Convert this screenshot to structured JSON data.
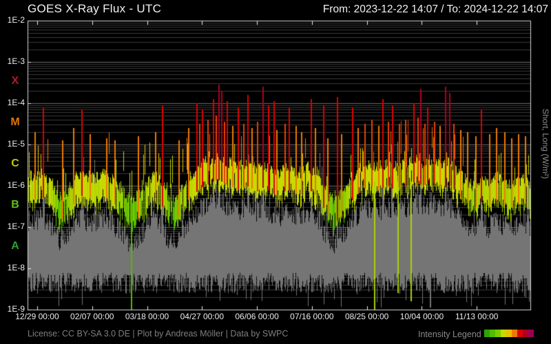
{
  "header": {
    "title": "GOES X-Ray Flux - UTC",
    "date_range": "From: 2023-12-22 14:07  /  To: 2024-12-22 14:07"
  },
  "right_axis_label": "Short, Long (W/m²)",
  "y_axis": {
    "ticks": [
      {
        "label": "1E-2",
        "log": -2
      },
      {
        "label": "1E-3",
        "log": -3
      },
      {
        "label": "1E-4",
        "log": -4
      },
      {
        "label": "1E-5",
        "log": -5
      },
      {
        "label": "1E-6",
        "log": -6
      },
      {
        "label": "1E-7",
        "log": -7
      },
      {
        "label": "1E-8",
        "log": -8
      },
      {
        "label": "1E-9",
        "log": -9
      }
    ],
    "class_labels": [
      {
        "label": "X",
        "log": -3.5,
        "color": "#b5182f"
      },
      {
        "label": "M",
        "log": -4.5,
        "color": "#e07800"
      },
      {
        "label": "C",
        "log": -5.5,
        "color": "#bcc800"
      },
      {
        "label": "B",
        "log": -6.5,
        "color": "#5fbf1f"
      },
      {
        "label": "A",
        "log": -7.5,
        "color": "#2ea02e"
      }
    ]
  },
  "x_axis": {
    "range_days": 366,
    "ticks": [
      {
        "label": "12/29 00:00",
        "day": 7
      },
      {
        "label": "02/07 00:00",
        "day": 47
      },
      {
        "label": "03/18 00:00",
        "day": 87
      },
      {
        "label": "04/27 00:00",
        "day": 127
      },
      {
        "label": "06/06 00:00",
        "day": 167
      },
      {
        "label": "07/16 00:00",
        "day": 207
      },
      {
        "label": "08/25 00:00",
        "day": 247
      },
      {
        "label": "10/04 00:00",
        "day": 287
      },
      {
        "label": "11/13 00:00",
        "day": 327
      }
    ]
  },
  "footer": {
    "license": "License: CC BY-SA 3.0 DE | Plot by Andreas Möller | Data by SWPC",
    "legend_label": "Intensity Legend",
    "legend_colors": [
      "#2aa800",
      "#54bb00",
      "#7cc900",
      "#c6da00",
      "#e9c000",
      "#ee7a00",
      "#dd0000",
      "#b00022",
      "#990055"
    ]
  },
  "chart_data": {
    "type": "line",
    "title": "GOES X-Ray Flux - UTC",
    "x_start": "2023-12-22 14:07",
    "x_end": "2024-12-22 14:07",
    "x_range_days": 366,
    "ylabel": "Short, Long (W/m²)",
    "y_log10_range": [
      -9,
      -2
    ],
    "grid": "log major + minor",
    "sample_step_days": 3,
    "series": [
      {
        "name": "long-channel x-ray flux (colored by intensity class)",
        "top_envelope_log10": [
          -5.85,
          -5.75,
          -5.8,
          -5.7,
          -5.75,
          -5.85,
          -5.95,
          -6.1,
          -6.3,
          -6.25,
          -6.1,
          -5.9,
          -5.75,
          -5.7,
          -5.8,
          -5.75,
          -5.85,
          -5.8,
          -5.7,
          -5.75,
          -5.8,
          -5.9,
          -6.0,
          -6.1,
          -6.25,
          -6.35,
          -6.3,
          -6.2,
          -6.05,
          -5.9,
          -5.8,
          -5.75,
          -5.85,
          -6.0,
          -6.25,
          -6.4,
          -6.35,
          -6.15,
          -5.95,
          -5.8,
          -5.7,
          -5.6,
          -5.5,
          -5.45,
          -5.4,
          -5.35,
          -5.3,
          -5.35,
          -5.4,
          -5.45,
          -5.5,
          -5.55,
          -5.5,
          -5.45,
          -5.5,
          -5.55,
          -5.6,
          -5.5,
          -5.55,
          -5.6,
          -5.65,
          -5.7,
          -5.6,
          -5.55,
          -5.6,
          -5.65,
          -5.7,
          -5.6,
          -5.55,
          -5.6,
          -5.7,
          -5.85,
          -6.05,
          -6.25,
          -6.35,
          -6.3,
          -6.2,
          -6.05,
          -5.9,
          -5.75,
          -5.65,
          -5.55,
          -5.5,
          -5.45,
          -5.5,
          -5.55,
          -5.5,
          -5.45,
          -5.5,
          -5.55,
          -5.5,
          -5.5,
          -5.45,
          -5.4,
          -5.35,
          -5.4,
          -5.45,
          -5.4,
          -5.35,
          -5.4,
          -5.45,
          -5.5,
          -5.45,
          -5.5,
          -5.6,
          -5.7,
          -5.8,
          -5.9,
          -6.0,
          -5.95,
          -5.85,
          -5.9,
          -5.95,
          -5.85,
          -5.8,
          -5.85,
          -5.95,
          -6.0,
          -5.95,
          -5.9,
          -5.85,
          -5.9,
          -5.95
        ],
        "band_depth_log10": 0.45
      },
      {
        "name": "short-channel x-ray flux (gray)",
        "top_envelope_log10": [
          -6.9,
          -6.8,
          -6.85,
          -6.75,
          -6.8,
          -6.9,
          -7.0,
          -7.15,
          -7.35,
          -7.3,
          -7.15,
          -6.95,
          -6.8,
          -6.75,
          -6.85,
          -6.8,
          -6.9,
          -6.85,
          -6.75,
          -6.8,
          -6.85,
          -6.95,
          -7.05,
          -7.15,
          -7.3,
          -7.4,
          -7.35,
          -7.25,
          -7.1,
          -6.95,
          -6.85,
          -6.8,
          -6.9,
          -7.05,
          -7.3,
          -7.45,
          -7.4,
          -7.2,
          -7.0,
          -6.85,
          -6.75,
          -6.65,
          -6.55,
          -6.5,
          -6.45,
          -6.4,
          -6.35,
          -6.4,
          -6.45,
          -6.5,
          -6.55,
          -6.6,
          -6.55,
          -6.5,
          -6.55,
          -6.6,
          -6.65,
          -6.55,
          -6.6,
          -6.65,
          -6.7,
          -6.75,
          -6.65,
          -6.6,
          -6.65,
          -6.7,
          -6.75,
          -6.65,
          -6.6,
          -6.65,
          -6.75,
          -6.9,
          -7.1,
          -7.3,
          -7.4,
          -7.35,
          -7.25,
          -7.1,
          -6.95,
          -6.8,
          -6.7,
          -6.6,
          -6.55,
          -6.5,
          -6.55,
          -6.6,
          -6.55,
          -6.5,
          -6.55,
          -6.6,
          -6.55,
          -6.55,
          -6.5,
          -6.45,
          -6.4,
          -6.45,
          -6.5,
          -6.45,
          -6.4,
          -6.45,
          -6.5,
          -6.55,
          -6.5,
          -6.55,
          -6.65,
          -6.75,
          -6.85,
          -6.95,
          -7.05,
          -7.0,
          -6.9,
          -6.95,
          -7.0,
          -6.9,
          -6.85,
          -6.9,
          -7.0,
          -7.05,
          -7.0,
          -6.95,
          -6.9,
          -6.95,
          -7.0
        ],
        "bottom_log10": -8.35,
        "color": "#757575"
      }
    ],
    "flares_day_logpeak": [
      [
        5,
        -4.7
      ],
      [
        11,
        -4.1
      ],
      [
        25,
        -4.9
      ],
      [
        33,
        -4.6
      ],
      [
        39,
        -4.15
      ],
      [
        45,
        -4.75
      ],
      [
        57,
        -4.85
      ],
      [
        63,
        -4.9
      ],
      [
        80,
        -4.8
      ],
      [
        93,
        -4.7
      ],
      [
        98,
        -4.05
      ],
      [
        110,
        -4.9
      ],
      [
        117,
        -4.6
      ],
      [
        123,
        -4.0
      ],
      [
        125,
        -4.5
      ],
      [
        127,
        -4.15
      ],
      [
        131,
        -4.4
      ],
      [
        135,
        -3.9
      ],
      [
        137,
        -4.3
      ],
      [
        139,
        -3.55
      ],
      [
        141,
        -3.7
      ],
      [
        143,
        -4.45
      ],
      [
        145,
        -3.95
      ],
      [
        149,
        -4.55
      ],
      [
        153,
        -4.1
      ],
      [
        157,
        -4.5
      ],
      [
        160,
        -3.8
      ],
      [
        163,
        -4.6
      ],
      [
        167,
        -4.45
      ],
      [
        171,
        -3.6
      ],
      [
        175,
        -4.05
      ],
      [
        179,
        -3.95
      ],
      [
        181,
        -4.65
      ],
      [
        187,
        -4.5
      ],
      [
        190,
        -4.1
      ],
      [
        195,
        -4.55
      ],
      [
        199,
        -4.7
      ],
      [
        206,
        -3.9
      ],
      [
        209,
        -4.6
      ],
      [
        215,
        -4.05
      ],
      [
        218,
        -4.85
      ],
      [
        225,
        -3.85
      ],
      [
        228,
        -4.75
      ],
      [
        236,
        -4.1
      ],
      [
        240,
        -4.6
      ],
      [
        245,
        -4.5
      ],
      [
        250,
        -4.4
      ],
      [
        255,
        -4.55
      ],
      [
        258,
        -3.9
      ],
      [
        262,
        -4.45
      ],
      [
        265,
        -4.05
      ],
      [
        270,
        -4.5
      ],
      [
        275,
        -4.4
      ],
      [
        281,
        -4.0
      ],
      [
        284,
        -4.35
      ],
      [
        286,
        -3.65
      ],
      [
        289,
        -4.5
      ],
      [
        291,
        -4.1
      ],
      [
        296,
        -4.45
      ],
      [
        300,
        -4.55
      ],
      [
        304,
        -3.6
      ],
      [
        307,
        -3.75
      ],
      [
        310,
        -4.5
      ],
      [
        315,
        -4.65
      ],
      [
        320,
        -4.7
      ],
      [
        326,
        -4.8
      ],
      [
        330,
        -4.15
      ],
      [
        336,
        -4.75
      ],
      [
        341,
        -4.6
      ],
      [
        347,
        -4.7
      ],
      [
        352,
        -4.85
      ],
      [
        357,
        -4.75
      ],
      [
        362,
        -4.8
      ]
    ],
    "short_spikes_day_logpeak": [
      [
        11,
        -5.9
      ],
      [
        39,
        -6.0
      ],
      [
        98,
        -6.1
      ],
      [
        135,
        -5.7
      ],
      [
        139,
        -5.5
      ],
      [
        160,
        -5.8
      ],
      [
        171,
        -5.6
      ],
      [
        206,
        -5.8
      ],
      [
        225,
        -5.7
      ],
      [
        258,
        -5.8
      ],
      [
        286,
        -5.5
      ],
      [
        304,
        -5.6
      ],
      [
        330,
        -6.0
      ]
    ],
    "dropouts": [
      {
        "series": "long",
        "day": 75,
        "top_log10": -6.35,
        "bottom_log10": -9
      },
      {
        "series": "long",
        "day": 252,
        "top_log10": -5.9,
        "bottom_log10": -9
      },
      {
        "series": "long",
        "day": 269,
        "top_log10": -5.9,
        "bottom_log10": -8.6
      },
      {
        "series": "long",
        "day": 279,
        "top_log10": -5.9,
        "bottom_log10": -8.8
      },
      {
        "series": "short",
        "day": 293,
        "top_log10": -6.9,
        "bottom_log10": -8.95
      }
    ],
    "intensity_colormap": [
      [
        -6.6,
        "#2aa800"
      ],
      [
        -6.3,
        "#54bb00"
      ],
      [
        -6.1,
        "#7cc900"
      ],
      [
        -5.85,
        "#a8d300"
      ],
      [
        -5.25,
        "#c6da00"
      ],
      [
        -4.95,
        "#e9c000"
      ],
      [
        -4.55,
        "#ee7a00"
      ],
      [
        -4.2,
        "#e84000"
      ],
      [
        -3.8,
        "#dd0000"
      ],
      [
        9,
        "#b00022"
      ]
    ]
  }
}
